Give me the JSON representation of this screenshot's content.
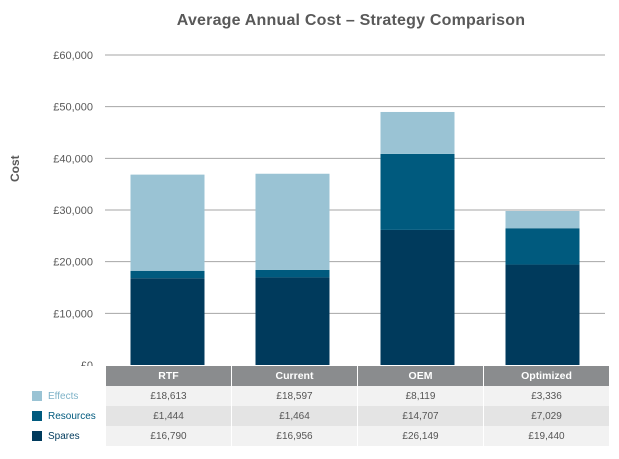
{
  "chart_data": {
    "type": "bar",
    "stacked": true,
    "title": "Average Annual Cost – Strategy Comparison",
    "ylabel": "Cost",
    "xlabel": "",
    "categories": [
      "RTF",
      "Current",
      "OEM",
      "Optimized"
    ],
    "series": [
      {
        "name": "Spares",
        "values": [
          16790,
          16956,
          26149,
          19440
        ],
        "labels": [
          "£16,790",
          "£16,956",
          "£26,149",
          "£19,440"
        ],
        "color": "#003a5c"
      },
      {
        "name": "Resources",
        "values": [
          1444,
          1464,
          14707,
          7029
        ],
        "labels": [
          "£1,444",
          "£1,464",
          "£14,707",
          "£7,029"
        ],
        "color": "#005a7e"
      },
      {
        "name": "Effects",
        "values": [
          18613,
          18597,
          8119,
          3336
        ],
        "labels": [
          "£18,613",
          "£18,597",
          "£8,119",
          "£3,336"
        ],
        "color": "#9ac3d4"
      }
    ],
    "ylim": [
      0,
      60000
    ],
    "yticks": [
      0,
      10000,
      20000,
      30000,
      40000,
      50000,
      60000
    ],
    "ytick_labels": [
      "£0",
      "£10,000",
      "£20,000",
      "£30,000",
      "£40,000",
      "£50,000",
      "£60,000"
    ],
    "grid": true,
    "legend": "data table below chart"
  }
}
